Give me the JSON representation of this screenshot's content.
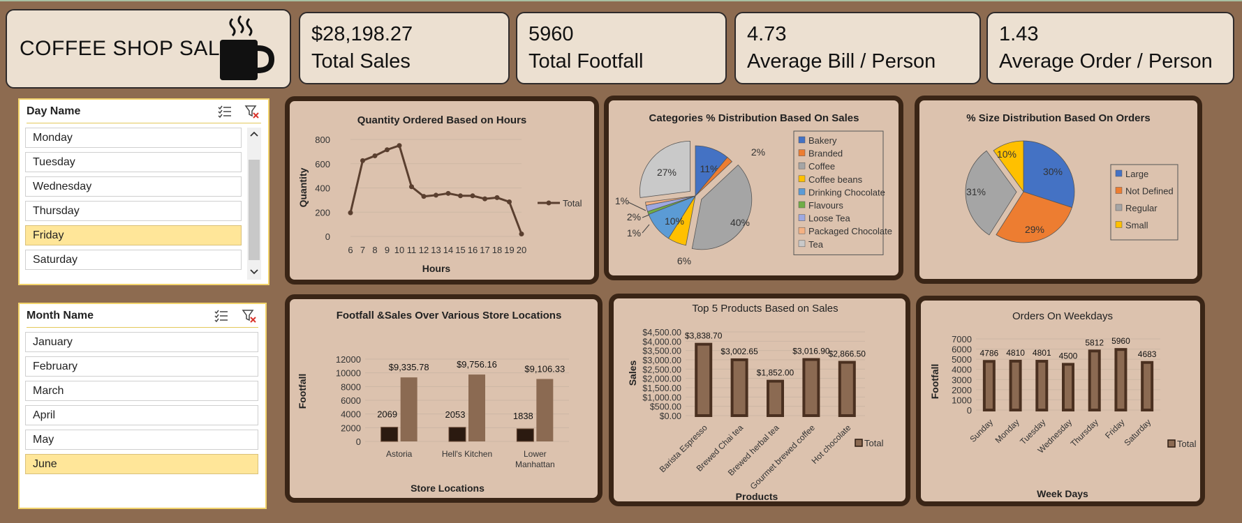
{
  "header": {
    "title": "COFFEE SHOP SALES",
    "icon": "coffee-cup-icon"
  },
  "kpis": [
    {
      "value": "$28,198.27",
      "label": "Total Sales"
    },
    {
      "value": "5960",
      "label": "Total Footfall"
    },
    {
      "value": "4.73",
      "label": "Average Bill / Person"
    },
    {
      "value": "1.43",
      "label": "Average Order / Person"
    }
  ],
  "slicers": {
    "day": {
      "title": "Day Name",
      "items": [
        "Monday",
        "Tuesday",
        "Wednesday",
        "Thursday",
        "Friday",
        "Saturday"
      ],
      "selected": "Friday"
    },
    "month": {
      "title": "Month Name",
      "items": [
        "January",
        "February",
        "March",
        "April",
        "May",
        "June"
      ],
      "selected": "June"
    }
  },
  "colors": {
    "background": "#8d6b50",
    "panel": "#dcc2ae",
    "panel_border": "#3a2516",
    "line": "#5a3f2f",
    "bar_dark": "#2b1a10",
    "bar_light": "#8b6a52"
  },
  "chart_data": [
    {
      "id": "hours",
      "type": "line",
      "title": "Quantity Ordered Based on Hours",
      "xlabel": "Hours",
      "ylabel": "Quantity",
      "x": [
        "6",
        "7",
        "8",
        "9",
        "10",
        "11",
        "12",
        "13",
        "14",
        "15",
        "16",
        "17",
        "18",
        "19",
        "20"
      ],
      "series": [
        {
          "name": "Total",
          "values": [
            195,
            625,
            665,
            715,
            750,
            410,
            330,
            340,
            355,
            335,
            335,
            310,
            320,
            285,
            20
          ]
        }
      ],
      "ylim": [
        0,
        800
      ],
      "yticks": [
        "0",
        "200",
        "400",
        "600",
        "800"
      ],
      "legend": "right"
    },
    {
      "id": "categories",
      "type": "pie",
      "title": "Categories % Distribution Based On Sales",
      "labels": [
        "Bakery",
        "Branded",
        "Coffee",
        "Coffee beans",
        "Drinking Chocolate",
        "Flavours",
        "Loose Tea",
        "Packaged Chocolate",
        "Tea"
      ],
      "values": [
        11,
        2,
        40,
        6,
        10,
        1,
        2,
        1,
        27
      ],
      "data_labels": [
        "11%",
        "2%",
        "40%",
        "6%",
        "10%",
        "",
        "2%",
        "1%",
        "27%"
      ],
      "extra_label": "1%",
      "colors": [
        "#4472c4",
        "#ed7d31",
        "#a5a5a5",
        "#ffc000",
        "#5b9bd5",
        "#70ad47",
        "#9ea8e0",
        "#f4b183",
        "#c9c9c9"
      ],
      "legend": "right"
    },
    {
      "id": "sizes",
      "type": "pie",
      "title": "% Size Distribution Based On Orders",
      "labels": [
        "Large",
        "Not Defined",
        "Regular",
        "Small"
      ],
      "values": [
        30,
        29,
        31,
        10
      ],
      "data_labels": [
        "30%",
        "29%",
        "31%",
        "10%"
      ],
      "colors": [
        "#4472c4",
        "#ed7d31",
        "#a5a5a5",
        "#ffc000"
      ],
      "legend": "right"
    },
    {
      "id": "locations",
      "type": "bar",
      "title": "Footfall &Sales Over Various Store Locations",
      "xlabel": "Store Locations",
      "ylabel": "Footfall",
      "categories": [
        "Astoria",
        "Hell's Kitchen",
        "Lower Manhattan"
      ],
      "series": [
        {
          "name": "Footfall",
          "values": [
            2069,
            2053,
            1838
          ],
          "labels": [
            "2069",
            "2053",
            "1838"
          ]
        },
        {
          "name": "Sales",
          "values": [
            9335.78,
            9756.16,
            9106.33
          ],
          "labels": [
            "$9,335.78",
            "$9,756.16",
            "$9,106.33"
          ]
        }
      ],
      "ylim": [
        0,
        12000
      ],
      "yticks": [
        "0",
        "2000",
        "4000",
        "6000",
        "8000",
        "10000",
        "12000"
      ]
    },
    {
      "id": "products",
      "type": "bar",
      "title": "Top 5 Products Based on Sales",
      "xlabel": "Products",
      "ylabel": "Sales",
      "categories": [
        "Barista Espresso",
        "Brewed Chai tea",
        "Brewed herbal tea",
        "Gourmet brewed coffee",
        "Hot chocolate"
      ],
      "series": [
        {
          "name": "Total",
          "values": [
            3838.7,
            3002.65,
            1852.0,
            3016.9,
            2866.5
          ],
          "labels": [
            "$3,838.70",
            "$3,002.65",
            "$1,852.00",
            "$3,016.90",
            "$2,866.50"
          ]
        }
      ],
      "ylim": [
        0,
        4500
      ],
      "yticks": [
        "$0.00",
        "$500.00",
        "$1,000.00",
        "$1,500.00",
        "$2,000.00",
        "$2,500.00",
        "$3,000.00",
        "$3,500.00",
        "$4,000.00",
        "$4,500.00"
      ],
      "legend": "right"
    },
    {
      "id": "weekdays",
      "type": "bar",
      "title": "Orders On Weekdays",
      "xlabel": "Week Days",
      "ylabel": "Footfall",
      "categories": [
        "Sunday",
        "Monday",
        "Tuesday",
        "Wednesday",
        "Thursday",
        "Friday",
        "Saturday"
      ],
      "series": [
        {
          "name": "Total",
          "values": [
            4786,
            4810,
            4801,
            4500,
            5812,
            5960,
            4683
          ],
          "labels": [
            "4786",
            "4810",
            "4801",
            "4500",
            "5812",
            "5960",
            "4683"
          ]
        }
      ],
      "ylim": [
        0,
        7000
      ],
      "yticks": [
        "0",
        "1000",
        "2000",
        "3000",
        "4000",
        "5000",
        "6000",
        "7000"
      ],
      "legend": "right"
    }
  ]
}
